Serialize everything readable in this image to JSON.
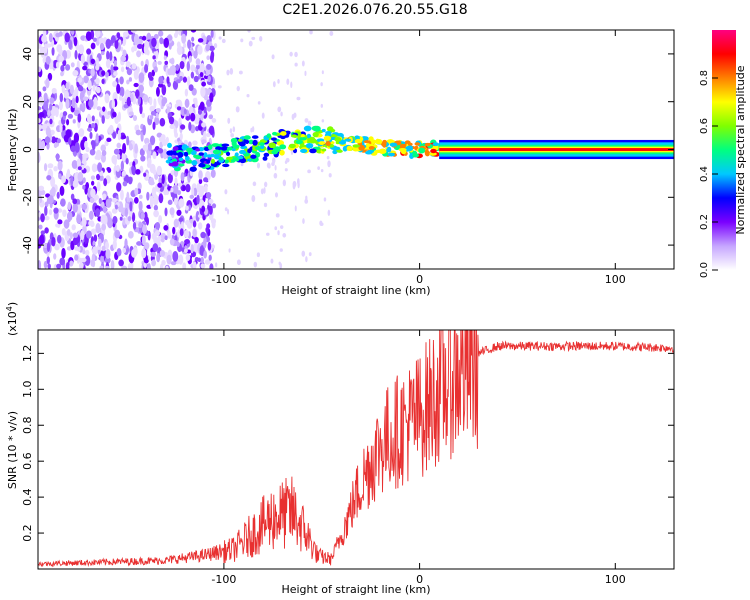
{
  "title": "C2E1.2026.076.20.55.G18",
  "chart_data": [
    {
      "type": "heatmap",
      "name": "spectrogram",
      "xlabel": "Height of straight line (km)",
      "ylabel": "Frequency (Hz)",
      "xlim": [
        -195,
        130
      ],
      "ylim": [
        -50,
        50
      ],
      "xticks": [
        -100,
        0,
        100
      ],
      "xtick_labels": [
        "-100",
        "0",
        "100"
      ],
      "yticks": [
        40,
        20,
        0,
        -20,
        -40
      ],
      "ytick_labels": [
        "40",
        "20",
        "0",
        "-20",
        "-40"
      ],
      "colorbar": {
        "label": "Normalized spectral amplitude",
        "range": [
          0,
          1
        ],
        "ticks": [
          0.0,
          0.2,
          0.4,
          0.6,
          0.8
        ],
        "tick_labels": [
          "0.0",
          "0.2",
          "0.4",
          "0.6",
          "0.8"
        ],
        "colors": [
          "#ffffff",
          "#c6a6ff",
          "#7a00ff",
          "#0000ff",
          "#00c8ff",
          "#00ff80",
          "#80ff00",
          "#ffff00",
          "#ff8000",
          "#ff0000",
          "#ff0080"
        ]
      },
      "features": {
        "noise_region_x": [
          -195,
          -105
        ],
        "line_trace": [
          [
            -128,
            -3
          ],
          [
            -110,
            -4
          ],
          [
            -100,
            -2
          ],
          [
            -90,
            0
          ],
          [
            -80,
            1
          ],
          [
            -70,
            3
          ],
          [
            -60,
            4
          ],
          [
            -50,
            4
          ],
          [
            -40,
            3
          ],
          [
            -30,
            2
          ],
          [
            -20,
            1
          ],
          [
            -10,
            0
          ],
          [
            0,
            0
          ],
          [
            130,
            0
          ]
        ],
        "stable_line_from_x": 10
      }
    },
    {
      "type": "line",
      "name": "snr",
      "xlabel": "Height of straight line (km)",
      "ylabel": "SNR (10 * v/v)",
      "scale_label": "(x10",
      "scale_exponent": "4",
      "scale_close": ")",
      "xlim": [
        -195,
        130
      ],
      "ylim": [
        0,
        1.33
      ],
      "xticks": [
        -100,
        0,
        100
      ],
      "xtick_labels": [
        "-100",
        "0",
        "100"
      ],
      "yticks": [
        0.2,
        0.4,
        0.6,
        0.8,
        1.0,
        1.2
      ],
      "ytick_labels": [
        "0.2",
        "0.4",
        "0.6",
        "0.8",
        "1.0",
        "1.2"
      ],
      "color": "#e83030",
      "envelope": [
        [
          -195,
          0.03
        ],
        [
          -130,
          0.05
        ],
        [
          -110,
          0.08
        ],
        [
          -95,
          0.12
        ],
        [
          -85,
          0.22
        ],
        [
          -75,
          0.32
        ],
        [
          -65,
          0.35
        ],
        [
          -58,
          0.22
        ],
        [
          -52,
          0.08
        ],
        [
          -45,
          0.06
        ],
        [
          -40,
          0.2
        ],
        [
          -35,
          0.35
        ],
        [
          -30,
          0.5
        ],
        [
          -25,
          0.62
        ],
        [
          -20,
          0.72
        ],
        [
          -15,
          0.78
        ],
        [
          -10,
          0.82
        ],
        [
          -5,
          0.86
        ],
        [
          0,
          0.9
        ],
        [
          5,
          0.97
        ],
        [
          10,
          1.05
        ],
        [
          20,
          1.15
        ],
        [
          30,
          1.2
        ],
        [
          40,
          1.24
        ],
        [
          60,
          1.24
        ],
        [
          100,
          1.24
        ],
        [
          130,
          1.23
        ]
      ]
    }
  ]
}
